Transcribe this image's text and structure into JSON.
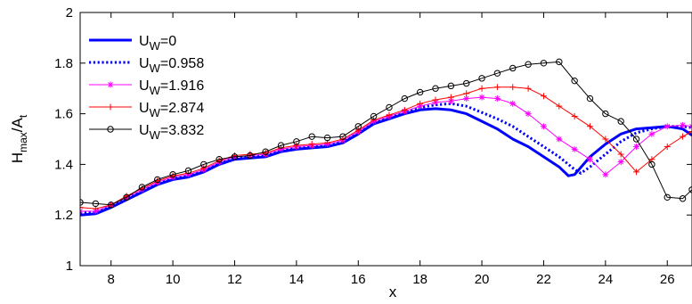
{
  "chart_data": {
    "type": "line",
    "title": "",
    "xlabel": "x",
    "ylabel": {
      "main": "H",
      "sub1": "max",
      "mid": "/A",
      "sub2": "t"
    },
    "xlim": [
      7,
      26.8
    ],
    "ylim": [
      1,
      2
    ],
    "xticks": [
      8,
      10,
      12,
      14,
      16,
      18,
      20,
      22,
      24,
      26
    ],
    "yticks": [
      1,
      1.2,
      1.4,
      1.6,
      1.8,
      2
    ],
    "grid": false,
    "legend_position": "top-left",
    "series": [
      {
        "name": "0",
        "color": "#0000ff",
        "style": "solid",
        "marker": "none",
        "x": [
          7,
          7.5,
          8,
          8.5,
          9,
          9.5,
          10,
          10.5,
          11,
          11.5,
          12,
          12.5,
          13,
          13.5,
          14,
          14.5,
          15,
          15.5,
          16,
          16.5,
          17,
          17.5,
          18,
          18.5,
          19,
          19.5,
          20,
          20.5,
          21,
          21.5,
          22,
          22.5,
          22.8,
          23,
          23.5,
          24,
          24.5,
          25,
          25.5,
          26,
          26.5,
          26.8
        ],
        "y": [
          1.2,
          1.205,
          1.23,
          1.26,
          1.29,
          1.32,
          1.34,
          1.35,
          1.37,
          1.4,
          1.42,
          1.425,
          1.43,
          1.45,
          1.46,
          1.465,
          1.47,
          1.485,
          1.52,
          1.56,
          1.58,
          1.6,
          1.615,
          1.62,
          1.615,
          1.6,
          1.57,
          1.54,
          1.5,
          1.47,
          1.43,
          1.39,
          1.355,
          1.36,
          1.43,
          1.48,
          1.52,
          1.54,
          1.545,
          1.55,
          1.54,
          1.515
        ]
      },
      {
        "name": "0.958",
        "color": "#0000ff",
        "style": "dotted",
        "marker": "none",
        "x": [
          7,
          7.5,
          8,
          8.5,
          9,
          9.5,
          10,
          10.5,
          11,
          11.5,
          12,
          12.5,
          13,
          13.5,
          14,
          14.5,
          15,
          15.5,
          16,
          16.5,
          17,
          17.5,
          18,
          18.5,
          19,
          19.5,
          20,
          20.5,
          21,
          21.5,
          22,
          22.5,
          23,
          23.2,
          23.5,
          24,
          24.5,
          25,
          25.5,
          26,
          26.5,
          26.8
        ],
        "y": [
          1.21,
          1.21,
          1.235,
          1.265,
          1.295,
          1.325,
          1.345,
          1.355,
          1.375,
          1.405,
          1.425,
          1.43,
          1.435,
          1.455,
          1.465,
          1.47,
          1.475,
          1.49,
          1.525,
          1.565,
          1.585,
          1.605,
          1.625,
          1.635,
          1.64,
          1.63,
          1.605,
          1.58,
          1.55,
          1.51,
          1.47,
          1.43,
          1.38,
          1.365,
          1.39,
          1.44,
          1.49,
          1.525,
          1.54,
          1.55,
          1.55,
          1.545
        ]
      },
      {
        "name": "1.916",
        "color": "#ff00ff",
        "style": "solid",
        "marker": "star",
        "x": [
          7,
          7.5,
          8,
          8.5,
          9,
          9.5,
          10,
          10.5,
          11,
          11.5,
          12,
          12.5,
          13,
          13.5,
          14,
          14.5,
          15,
          15.5,
          16,
          16.5,
          17,
          17.5,
          18,
          18.5,
          19,
          19.5,
          20,
          20.5,
          21,
          21.5,
          22,
          22.5,
          23,
          23.5,
          24,
          24.5,
          25,
          25.5,
          26,
          26.5,
          26.8
        ],
        "y": [
          1.215,
          1.215,
          1.24,
          1.27,
          1.3,
          1.33,
          1.35,
          1.36,
          1.38,
          1.41,
          1.43,
          1.435,
          1.44,
          1.46,
          1.47,
          1.475,
          1.48,
          1.495,
          1.53,
          1.57,
          1.59,
          1.61,
          1.63,
          1.645,
          1.65,
          1.66,
          1.665,
          1.66,
          1.64,
          1.6,
          1.55,
          1.5,
          1.46,
          1.42,
          1.36,
          1.41,
          1.47,
          1.52,
          1.55,
          1.555,
          1.55
        ]
      },
      {
        "name": "2.874",
        "color": "#ff0000",
        "style": "solid",
        "marker": "plus",
        "x": [
          7,
          7.5,
          8,
          8.5,
          9,
          9.5,
          10,
          10.5,
          11,
          11.5,
          12,
          12.5,
          13,
          13.5,
          14,
          14.5,
          15,
          15.5,
          16,
          16.5,
          17,
          17.5,
          18,
          18.5,
          19,
          19.5,
          20,
          20.5,
          21,
          21.5,
          22,
          22.5,
          23,
          23.5,
          24,
          24.5,
          25,
          25.5,
          26,
          26.5,
          26.8
        ],
        "y": [
          1.23,
          1.225,
          1.24,
          1.275,
          1.305,
          1.335,
          1.355,
          1.365,
          1.385,
          1.415,
          1.435,
          1.44,
          1.445,
          1.465,
          1.475,
          1.48,
          1.485,
          1.5,
          1.535,
          1.575,
          1.595,
          1.615,
          1.64,
          1.655,
          1.665,
          1.68,
          1.7,
          1.705,
          1.705,
          1.7,
          1.67,
          1.63,
          1.59,
          1.55,
          1.5,
          1.44,
          1.37,
          1.42,
          1.47,
          1.51,
          1.53
        ]
      },
      {
        "name": "3.832",
        "color": "#000000",
        "style": "solid",
        "marker": "circle",
        "x": [
          7,
          7.5,
          8,
          8.5,
          9,
          9.5,
          10,
          10.5,
          11,
          11.5,
          12,
          12.5,
          13,
          13.5,
          14,
          14.5,
          15,
          15.5,
          16,
          16.5,
          17,
          17.5,
          18,
          18.5,
          19,
          19.5,
          20,
          20.5,
          21,
          21.5,
          22,
          22.5,
          23,
          23.5,
          24,
          24.5,
          25,
          25.5,
          26,
          26.5,
          26.8
        ],
        "y": [
          1.25,
          1.245,
          1.24,
          1.27,
          1.31,
          1.34,
          1.36,
          1.375,
          1.4,
          1.42,
          1.43,
          1.435,
          1.45,
          1.475,
          1.49,
          1.51,
          1.505,
          1.51,
          1.55,
          1.59,
          1.625,
          1.66,
          1.685,
          1.7,
          1.71,
          1.72,
          1.74,
          1.76,
          1.78,
          1.795,
          1.8,
          1.805,
          1.73,
          1.66,
          1.6,
          1.57,
          1.5,
          1.4,
          1.27,
          1.265,
          1.3
        ]
      }
    ]
  },
  "legend": {
    "prefix_main": "U",
    "prefix_sub": "W",
    "items": [
      "=0",
      "=0.958",
      "=1.916",
      "=2.874",
      "=3.832"
    ]
  }
}
